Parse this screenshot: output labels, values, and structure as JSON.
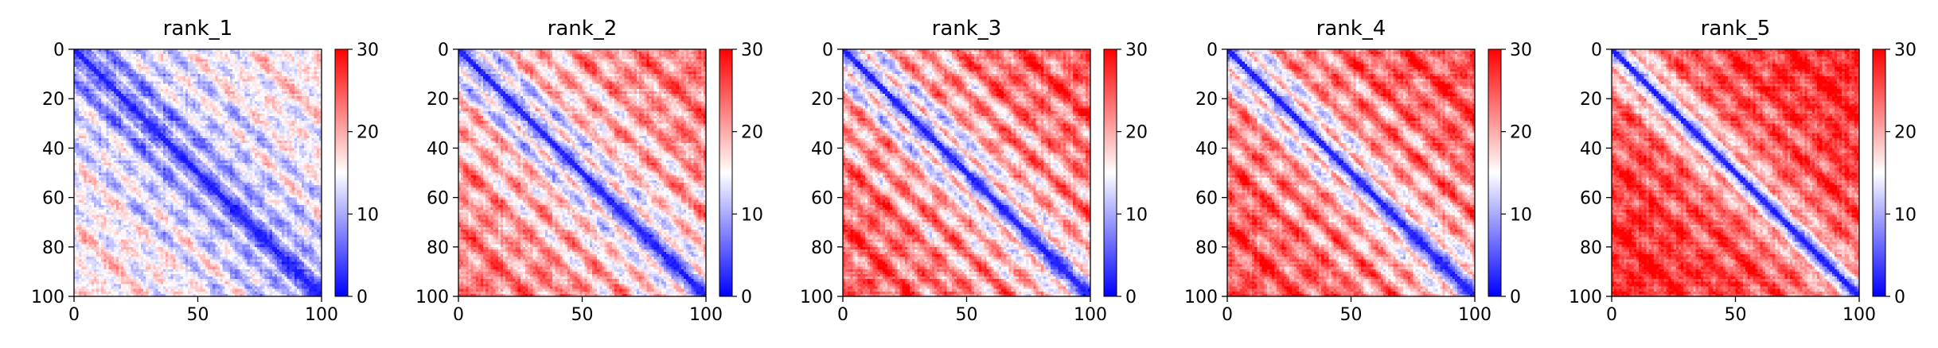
{
  "chart_data": {
    "type": "heatmap",
    "colormap": [
      "#0000ff",
      "#ffffff",
      "#ff0000"
    ],
    "colormap_name": "bwr",
    "value_range": [
      0,
      30
    ],
    "colorbar_ticks": [
      0,
      10,
      20,
      30
    ],
    "x_ticks": [
      0,
      50,
      100
    ],
    "y_ticks": [
      0,
      20,
      40,
      60,
      80,
      100
    ],
    "xlim": [
      0,
      100
    ],
    "ylim": [
      100,
      0
    ],
    "grid": false,
    "panels": [
      {
        "title": "rank_1",
        "near_diagonal_value": 2,
        "background_value": 11,
        "far_value": 16,
        "contrast": 0.9
      },
      {
        "title": "rank_2",
        "near_diagonal_value": 2,
        "background_value": 16,
        "far_value": 22,
        "contrast": 1.1
      },
      {
        "title": "rank_3",
        "near_diagonal_value": 2,
        "background_value": 18,
        "far_value": 24,
        "contrast": 1.2
      },
      {
        "title": "rank_4",
        "near_diagonal_value": 2,
        "background_value": 19,
        "far_value": 25,
        "contrast": 1.1
      },
      {
        "title": "rank_5",
        "near_diagonal_value": 2,
        "background_value": 23,
        "far_value": 27,
        "contrast": 0.8
      }
    ]
  }
}
